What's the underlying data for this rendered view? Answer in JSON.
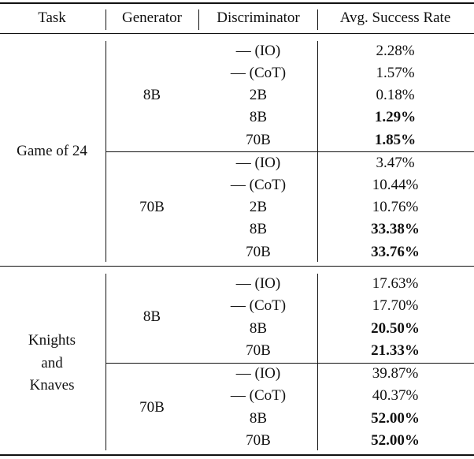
{
  "headers": [
    "Task",
    "Generator",
    "Discriminator",
    "Avg. Success Rate"
  ],
  "groups": [
    {
      "task": [
        "Game of 24"
      ],
      "blocks": [
        {
          "generator": "8B",
          "rows": [
            {
              "disc": "— (IO)",
              "rate": "2.28%",
              "bold": false
            },
            {
              "disc": "— (CoT)",
              "rate": "1.57%",
              "bold": false
            },
            {
              "disc": "2B",
              "rate": "0.18%",
              "bold": false
            },
            {
              "disc": "8B",
              "rate": "1.29%",
              "bold": true
            },
            {
              "disc": "70B",
              "rate": "1.85%",
              "bold": true
            }
          ]
        },
        {
          "generator": "70B",
          "rows": [
            {
              "disc": "— (IO)",
              "rate": "3.47%",
              "bold": false
            },
            {
              "disc": "— (CoT)",
              "rate": "10.44%",
              "bold": false
            },
            {
              "disc": "2B",
              "rate": "10.76%",
              "bold": false
            },
            {
              "disc": "8B",
              "rate": "33.38%",
              "bold": true
            },
            {
              "disc": "70B",
              "rate": "33.76%",
              "bold": true
            }
          ]
        }
      ]
    },
    {
      "task": [
        "Knights",
        "and",
        "Knaves"
      ],
      "blocks": [
        {
          "generator": "8B",
          "rows": [
            {
              "disc": "— (IO)",
              "rate": "17.63%",
              "bold": false
            },
            {
              "disc": "— (CoT)",
              "rate": "17.70%",
              "bold": false
            },
            {
              "disc": "8B",
              "rate": "20.50%",
              "bold": true
            },
            {
              "disc": "70B",
              "rate": "21.33%",
              "bold": true
            }
          ]
        },
        {
          "generator": "70B",
          "rows": [
            {
              "disc": "— (IO)",
              "rate": "39.87%",
              "bold": false
            },
            {
              "disc": "— (CoT)",
              "rate": "40.37%",
              "bold": false
            },
            {
              "disc": "8B",
              "rate": "52.00%",
              "bold": true
            },
            {
              "disc": "70B",
              "rate": "52.00%",
              "bold": true
            }
          ]
        }
      ]
    }
  ]
}
